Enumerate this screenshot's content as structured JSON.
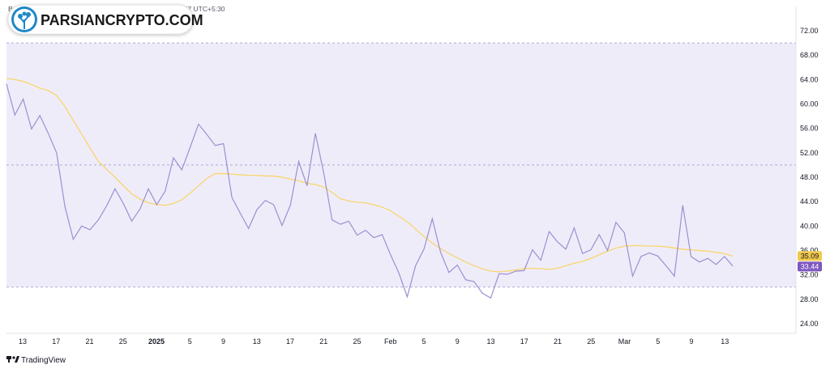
{
  "header": {
    "published_text": "Bei…p1 published on TradingView.com, Mar 08, 2025 17:37 UTC+5:30",
    "logo_text": "PARSIANCRYPTO.COM"
  },
  "footer": {
    "brand": "TradingView"
  },
  "colors": {
    "rsi_line": "#9c8fd0",
    "ma_line": "#f7d775",
    "band_fill": "#efecfa",
    "band_border": "#b2a8d6",
    "ma_badge": "#f2c94c",
    "rsi_badge": "#7e57c2"
  },
  "chart_data": {
    "type": "line",
    "title": "",
    "xlabel": "",
    "ylabel": "",
    "ylim": [
      22,
      74
    ],
    "y_ticks": [
      "72.00",
      "68.00",
      "64.00",
      "60.00",
      "56.00",
      "52.00",
      "48.00",
      "44.00",
      "40.00",
      "36.00",
      "32.00",
      "28.00",
      "24.00"
    ],
    "x_tick_labels": [
      "13",
      "17",
      "21",
      "25",
      "2025",
      "5",
      "9",
      "13",
      "17",
      "21",
      "25",
      "Feb",
      "5",
      "9",
      "13",
      "17",
      "21",
      "25",
      "Mar",
      "5",
      "9",
      "13"
    ],
    "bands": {
      "upper": 70,
      "middle": 50,
      "lower": 30
    },
    "series": [
      {
        "values": [
          63.3,
          58.2,
          60.8,
          55.9,
          58.1,
          55.2,
          52.0,
          43.2,
          37.8,
          40.0,
          39.4,
          41.0,
          43.3,
          46.1,
          43.7,
          40.8,
          42.8,
          46.1,
          43.5,
          45.7,
          51.2,
          49.2,
          52.9,
          56.7,
          55.0,
          53.2,
          53.5,
          44.7,
          42.1,
          39.6,
          42.7,
          44.2,
          43.5,
          40.1,
          43.4,
          50.6,
          46.6,
          55.2,
          48.7,
          41.0,
          40.3,
          40.8,
          38.5,
          39.3,
          38.1,
          38.6,
          35.3,
          32.3,
          28.4,
          33.5,
          36.2,
          41.2,
          35.7,
          32.4,
          33.6,
          31.2,
          30.9,
          29.0,
          28.2,
          32.2,
          32.1,
          32.6,
          32.7,
          36.1,
          34.4,
          39.1,
          37.4,
          36.2,
          39.7,
          35.5,
          36.1,
          38.6,
          36.0,
          40.6,
          38.9,
          31.8,
          35.0,
          35.6,
          35.1,
          33.5,
          31.8,
          43.4,
          35.0,
          34.1,
          34.7,
          33.7,
          35.0,
          33.44
        ],
        "last_value_label": "33.44"
      },
      {
        "values": [
          64.2,
          64.0,
          63.7,
          63.2,
          62.6,
          62.2,
          61.4,
          59.6,
          57.3,
          55.1,
          52.8,
          50.6,
          49.3,
          48.0,
          46.6,
          45.3,
          44.4,
          43.8,
          43.5,
          43.4,
          43.7,
          44.3,
          45.4,
          46.6,
          47.8,
          48.6,
          48.6,
          48.5,
          48.4,
          48.3,
          48.3,
          48.2,
          48.2,
          48.0,
          47.7,
          47.4,
          47.0,
          46.8,
          46.4,
          45.5,
          44.5,
          44.1,
          43.9,
          43.8,
          43.5,
          43.1,
          42.5,
          41.6,
          40.7,
          39.5,
          38.3,
          37.2,
          36.3,
          35.5,
          34.8,
          34.1,
          33.5,
          33.0,
          32.6,
          32.5,
          32.6,
          32.8,
          33.0,
          33.1,
          33.0,
          32.9,
          33.1,
          33.5,
          33.9,
          34.2,
          34.7,
          35.3,
          35.9,
          36.4,
          36.7,
          36.8,
          36.8,
          36.7,
          36.7,
          36.6,
          36.4,
          36.2,
          36.1,
          36.0,
          35.9,
          35.7,
          35.5,
          35.09
        ],
        "last_value_label": "35.09"
      }
    ]
  }
}
